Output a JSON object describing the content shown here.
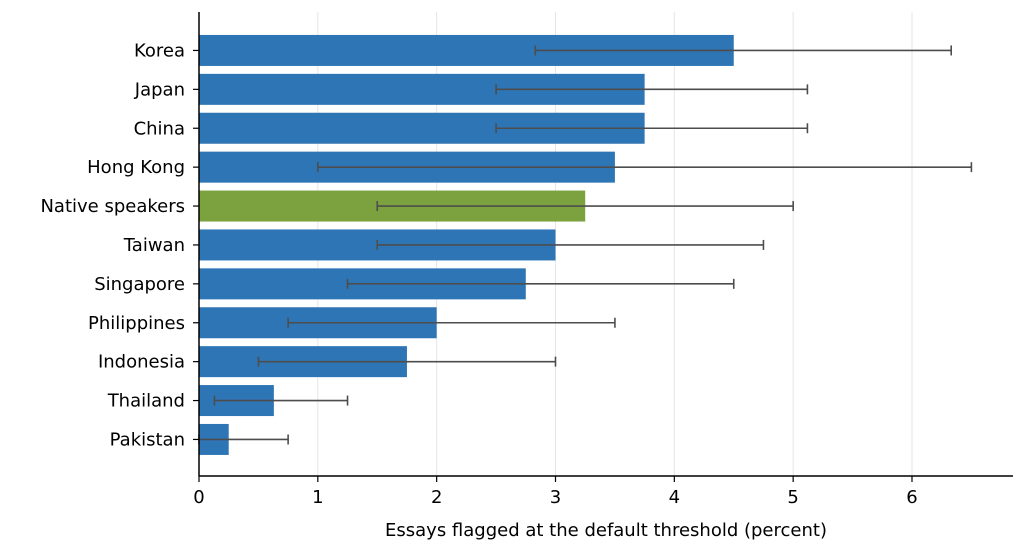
{
  "chart_data": {
    "type": "bar",
    "orientation": "horizontal",
    "xlabel": "Essays flagged at the default threshold (percent)",
    "ylabel": "",
    "xlim": [
      0,
      6.85
    ],
    "xticks": [
      0,
      1,
      2,
      3,
      4,
      5,
      6
    ],
    "grid": "vertical",
    "categories": [
      "Korea",
      "Japan",
      "China",
      "Hong Kong",
      "Native speakers",
      "Taiwan",
      "Singapore",
      "Philippines",
      "Indonesia",
      "Thailand",
      "Pakistan"
    ],
    "values": [
      4.5,
      3.75,
      3.75,
      3.5,
      3.25,
      3.0,
      2.75,
      2.0,
      1.75,
      0.63,
      0.25
    ],
    "error_low": [
      2.83,
      2.5,
      2.5,
      1.0,
      1.5,
      1.5,
      1.25,
      0.75,
      0.5,
      0.13,
      0.0
    ],
    "error_high": [
      6.33,
      5.12,
      5.12,
      6.5,
      5.0,
      4.75,
      4.5,
      3.5,
      3.0,
      1.25,
      0.75
    ],
    "bar_colors": [
      "#2e75b6",
      "#2e75b6",
      "#2e75b6",
      "#2e75b6",
      "#7ba23f",
      "#2e75b6",
      "#2e75b6",
      "#2e75b6",
      "#2e75b6",
      "#2e75b6",
      "#2e75b6"
    ],
    "colors": {
      "default_bar": "#2e75b6",
      "highlight_bar": "#7ba23f",
      "error_bar": "#4d4d4d",
      "grid": "#e6e6e6",
      "axis": "#000000"
    }
  }
}
